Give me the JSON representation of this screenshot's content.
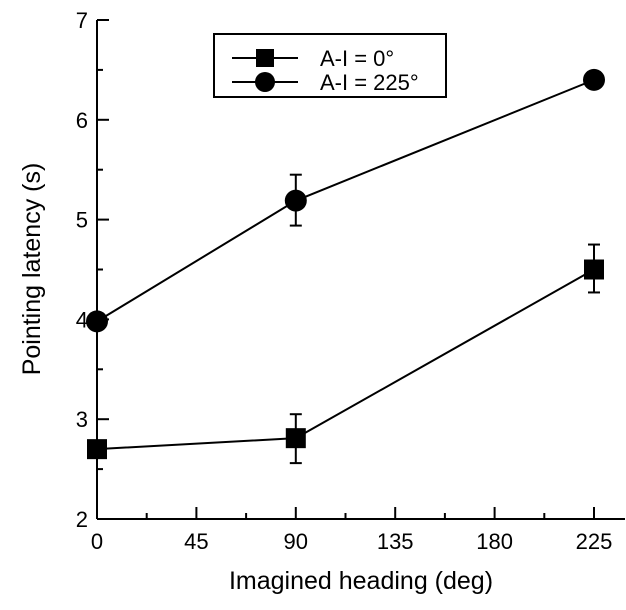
{
  "chart_data": {
    "type": "line",
    "title": "",
    "xlabel": "Imagined heading (deg)",
    "ylabel": "Pointing latency (s)",
    "xlim": [
      0,
      225
    ],
    "ylim": [
      2,
      7
    ],
    "x_ticks": [
      0,
      45,
      90,
      135,
      180,
      225
    ],
    "y_ticks": [
      2,
      3,
      4,
      5,
      6,
      7
    ],
    "x_tick_labels": [
      "0",
      "45",
      "90",
      "135",
      "180",
      "225"
    ],
    "y_tick_labels": [
      "2",
      "3",
      "4",
      "5",
      "6",
      "7"
    ],
    "grid": false,
    "legend_position": "top-center",
    "x": [
      0,
      90,
      225
    ],
    "series": [
      {
        "name": "A-I = 0°",
        "marker": "square",
        "values": [
          2.7,
          2.81,
          4.5
        ],
        "error_upper": [
          0.0,
          0.24,
          0.25
        ],
        "error_lower": [
          0.0,
          0.25,
          0.23
        ],
        "color": "#000000"
      },
      {
        "name": "A-I = 225°",
        "marker": "circle",
        "values": [
          3.98,
          5.19,
          6.4
        ],
        "error_upper": [
          0.0,
          0.26,
          0.0
        ],
        "error_lower": [
          0.0,
          0.25,
          0.0
        ],
        "color": "#000000"
      }
    ]
  }
}
